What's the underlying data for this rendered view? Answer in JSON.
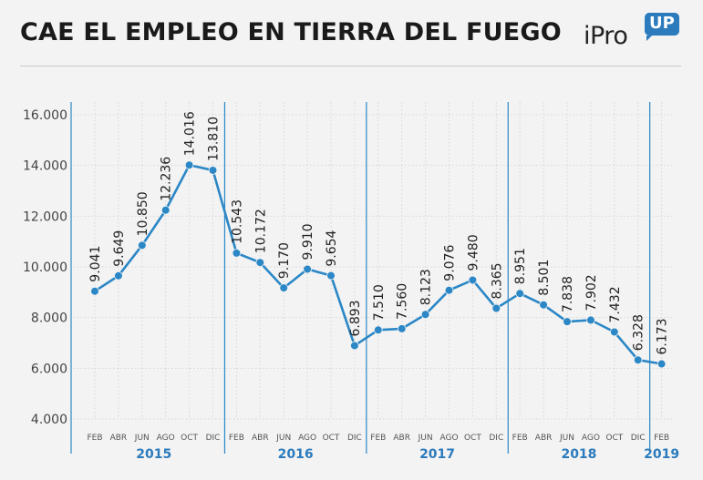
{
  "header": {
    "title": "CAE EL EMPLEO EN TIERRA DEL FUEGO",
    "logo_text": "iPro",
    "logo_badge": "UP"
  },
  "colors": {
    "line": "#2b87c6",
    "point": "#2b87c6",
    "year_label": "#2b7bbd",
    "grid": "#d6d6d6"
  },
  "chart_data": {
    "type": "line",
    "categories": [
      "FEB",
      "ABR",
      "JUN",
      "AGO",
      "OCT",
      "DIC",
      "FEB",
      "ABR",
      "JUN",
      "AGO",
      "OCT",
      "DIC",
      "FEB",
      "ABR",
      "JUN",
      "AGO",
      "OCT",
      "DIC",
      "FEB",
      "ABR",
      "JUN",
      "AGO",
      "OCT",
      "DIC",
      "FEB"
    ],
    "values": [
      9041,
      9649,
      10850,
      12236,
      14016,
      13810,
      10543,
      10172,
      9170,
      9910,
      9654,
      6893,
      7510,
      7560,
      8123,
      9076,
      9480,
      8365,
      8951,
      8501,
      7838,
      7902,
      7432,
      6328,
      6173
    ],
    "value_labels": [
      "9.041",
      "9.649",
      "10.850",
      "12.236",
      "14.016",
      "13.810",
      "10.543",
      "10.172",
      "9.170",
      "9.910",
      "9.654",
      "6.893",
      "7.510",
      "7.560",
      "8.123",
      "9.076",
      "9.480",
      "8.365",
      "8.951",
      "8.501",
      "7.838",
      "7.902",
      "7.432",
      "6.328",
      "6.173"
    ],
    "years": [
      {
        "label": "2015",
        "from": 0,
        "to": 5
      },
      {
        "label": "2016",
        "from": 6,
        "to": 11
      },
      {
        "label": "2017",
        "from": 12,
        "to": 17
      },
      {
        "label": "2018",
        "from": 18,
        "to": 23
      },
      {
        "label": "2019",
        "from": 24,
        "to": 24
      }
    ],
    "year_dividers_after": [
      5,
      11,
      17,
      23
    ],
    "y_ticks": [
      4000,
      6000,
      8000,
      10000,
      12000,
      14000,
      16000
    ],
    "y_tick_labels": [
      "4.000",
      "6.000",
      "8.000",
      "10.000",
      "12.000",
      "14.000",
      "16.000"
    ],
    "ylim": [
      4000,
      16000
    ],
    "grid": true,
    "title": "CAE EL EMPLEO EN TIERRA DEL FUEGO",
    "xlabel": "",
    "ylabel": ""
  }
}
